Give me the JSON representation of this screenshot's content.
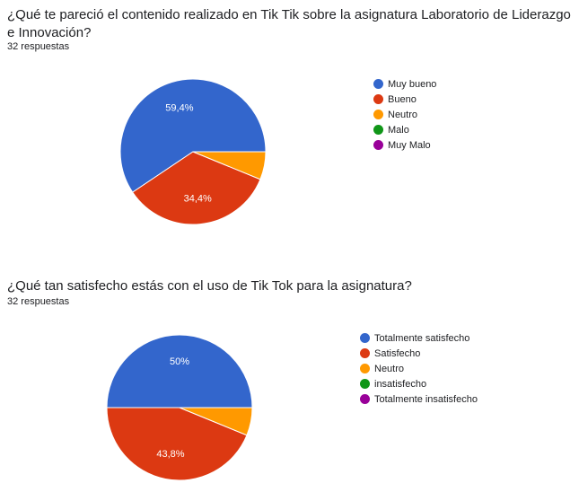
{
  "chart_data": [
    {
      "type": "pie",
      "title": "¿Qué te pareció el contenido realizado en Tik Tik sobre la asignatura Laboratorio de Liderazgo e Innovación?",
      "subtitle": "32 respuestas",
      "categories": [
        "Muy bueno",
        "Bueno",
        "Neutro",
        "Malo",
        "Muy Malo"
      ],
      "values": [
        59.4,
        34.4,
        6.2,
        0,
        0
      ],
      "data_labels": [
        "59,4%",
        "34,4%",
        "",
        "",
        ""
      ],
      "colors": [
        "#3366cc",
        "#dc3912",
        "#ff9900",
        "#109618",
        "#990099"
      ],
      "legend": "right"
    },
    {
      "type": "pie",
      "title": "¿Qué tan satisfecho estás con el uso de Tik Tok para la asignatura?",
      "subtitle": "32 respuestas",
      "categories": [
        "Totalmente satisfecho",
        "Satisfecho",
        "Neutro",
        "insatisfecho",
        "Totalmente insatisfecho"
      ],
      "values": [
        50,
        43.8,
        6.2,
        0,
        0
      ],
      "data_labels": [
        "50%",
        "43,8%",
        "",
        "",
        ""
      ],
      "colors": [
        "#3366cc",
        "#dc3912",
        "#ff9900",
        "#109618",
        "#990099"
      ],
      "legend": "right"
    }
  ]
}
